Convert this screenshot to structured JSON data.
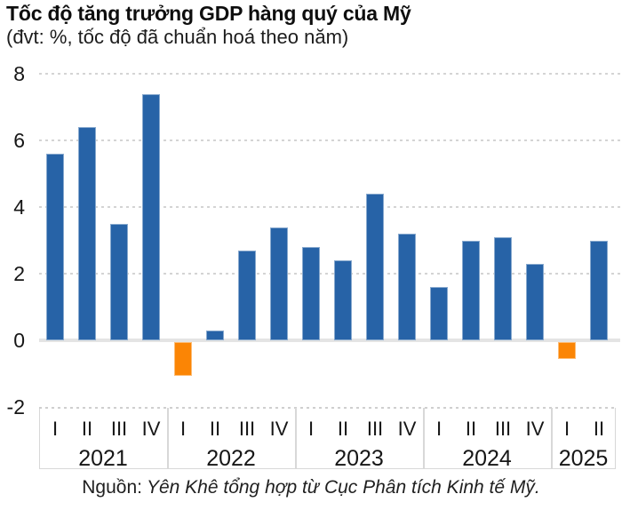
{
  "header": {
    "title": "Tốc độ tăng trưởng GDP hàng quý của Mỹ",
    "subtitle": "(đvt: %, tốc độ đã chuẩn hoá theo năm)"
  },
  "source": {
    "prefix": "Nguồn:",
    "text": "Yên Khê tổng hợp từ Cục Phân tích Kinh tế Mỹ."
  },
  "chart_data": {
    "type": "bar",
    "title": "Tốc độ tăng trưởng GDP hàng quý của Mỹ",
    "subtitle": "(đvt: %, tốc độ đã chuẩn hoá theo năm)",
    "unit": "%",
    "ylim": [
      -2,
      8
    ],
    "y_ticks": [
      8,
      6,
      4,
      2,
      0,
      -2
    ],
    "grid": "horizontal-dotted",
    "legend": "none",
    "colors": {
      "positive": "#2763a7",
      "negative": "#fb8505",
      "grid": "#d4d4d4",
      "zero_line": "#e4e4e4",
      "box_border": "#d8d8d8",
      "text": "#161616"
    },
    "groups": [
      {
        "year": "2021",
        "quarters": [
          "I",
          "II",
          "III",
          "IV"
        ],
        "values": [
          5.6,
          6.4,
          3.5,
          7.4
        ]
      },
      {
        "year": "2022",
        "quarters": [
          "I",
          "II",
          "III",
          "IV"
        ],
        "values": [
          -1.0,
          0.3,
          2.7,
          3.4
        ]
      },
      {
        "year": "2023",
        "quarters": [
          "I",
          "II",
          "III",
          "IV"
        ],
        "values": [
          2.8,
          2.4,
          4.4,
          3.2
        ]
      },
      {
        "year": "2024",
        "quarters": [
          "I",
          "II",
          "III",
          "IV"
        ],
        "values": [
          1.6,
          3.0,
          3.1,
          2.3
        ]
      },
      {
        "year": "2025",
        "quarters": [
          "I",
          "II"
        ],
        "values": [
          -0.5,
          3.0
        ]
      }
    ]
  }
}
